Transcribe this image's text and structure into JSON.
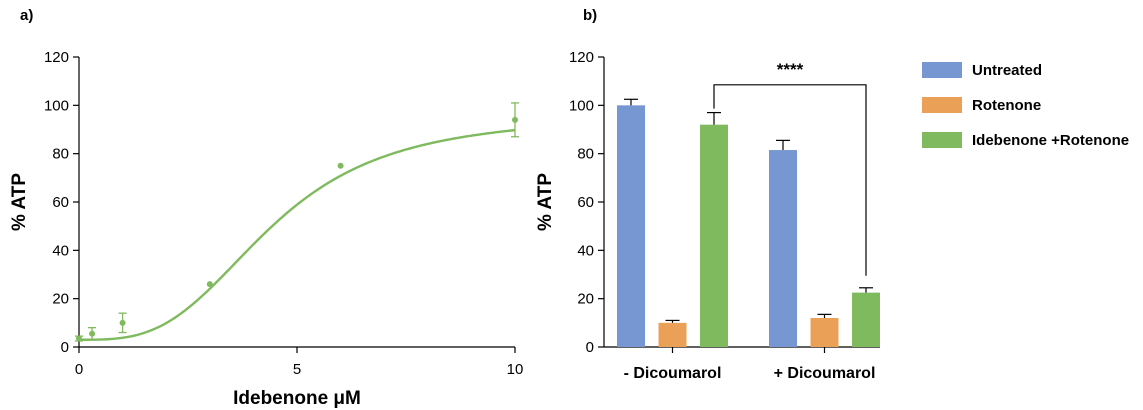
{
  "chart_data": [
    {
      "panel": "a)",
      "type": "line",
      "xlabel": "Idebenone μM",
      "ylabel": "% ATP",
      "xlim": [
        0,
        10
      ],
      "ylim": [
        0,
        120
      ],
      "xticks": [
        "0",
        "5",
        "10"
      ],
      "yticks": [
        "0",
        "20",
        "40",
        "60",
        "80",
        "100",
        "120"
      ],
      "color": "#7fba5e",
      "points": [
        {
          "x": 0,
          "y": 3.5,
          "err": 1
        },
        {
          "x": 0.3,
          "y": 5.5,
          "err": 2.5
        },
        {
          "x": 1,
          "y": 10,
          "err": 4
        },
        {
          "x": 3,
          "y": 26,
          "err": 0.5
        },
        {
          "x": 6,
          "y": 75,
          "err": 0.5
        },
        {
          "x": 10,
          "y": 94,
          "err": 7
        }
      ],
      "fit": {
        "bottom": 3,
        "top": 96,
        "ec50": 4.4,
        "hill": 3.2
      }
    },
    {
      "panel": "b)",
      "type": "bar",
      "ylabel": "% ATP",
      "ylim": [
        0,
        120
      ],
      "yticks": [
        "0",
        "20",
        "40",
        "60",
        "80",
        "100",
        "120"
      ],
      "categories": [
        "- Dicoumarol",
        "+ Dicoumarol"
      ],
      "series": [
        {
          "name": "Untreated",
          "color": "#7697d1",
          "values": [
            100,
            81.5
          ],
          "errors": [
            2.5,
            4
          ]
        },
        {
          "name": "Rotenone",
          "color": "#eba057",
          "values": [
            10,
            12
          ],
          "errors": [
            1,
            1.5
          ]
        },
        {
          "name": "Idebenone +Rotenone",
          "color": "#7fba5e",
          "values": [
            92,
            22.5
          ],
          "errors": [
            5,
            2
          ]
        }
      ],
      "annotation": {
        "text": "****",
        "from": "- Dicoumarol / Idebenone +Rotenone",
        "to": "+ Dicoumarol / Idebenone +Rotenone"
      },
      "legend": "right"
    }
  ]
}
